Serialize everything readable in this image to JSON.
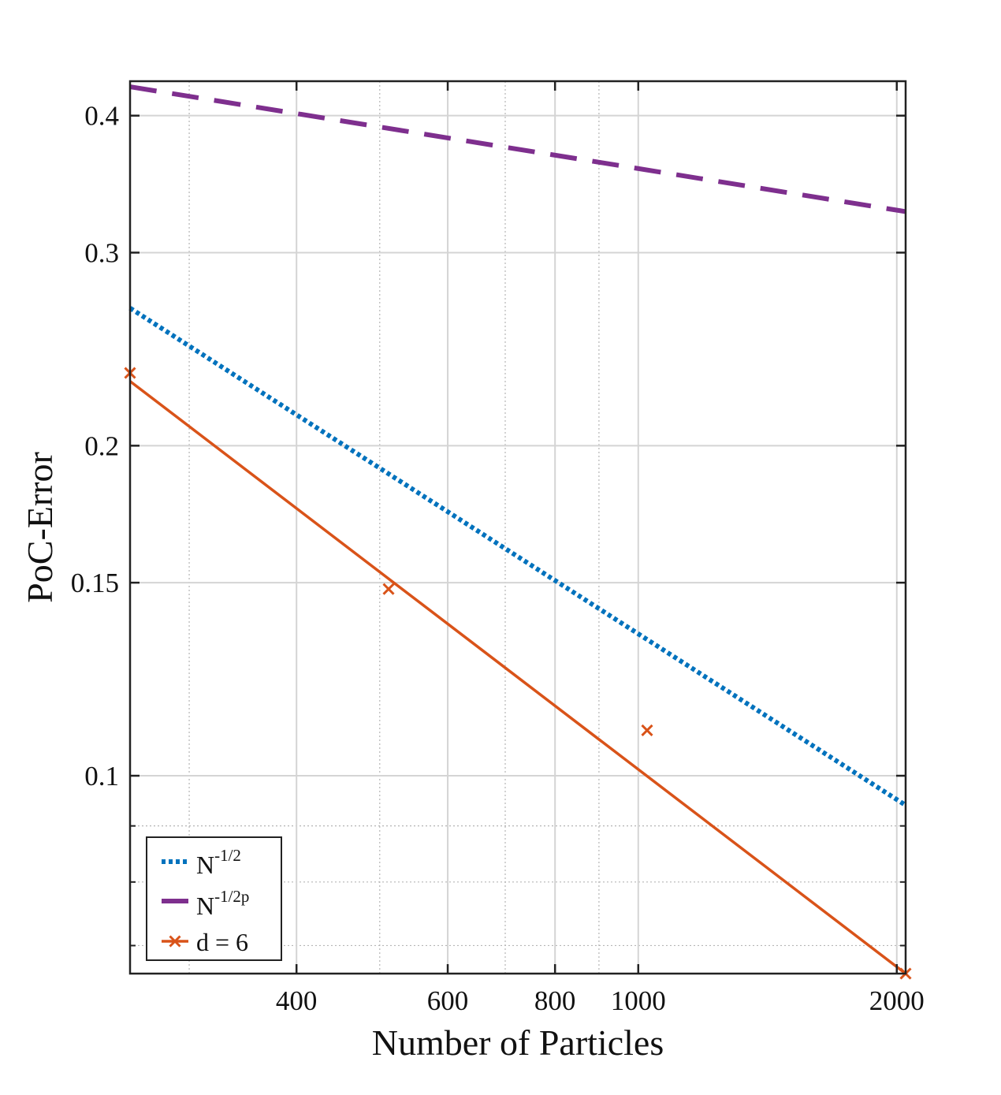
{
  "chart_data": {
    "type": "line",
    "title": "",
    "xlabel": "Number of Particles",
    "ylabel": "PoC-Error",
    "xscale": "log",
    "yscale": "log",
    "xlim": [
      256,
      2048
    ],
    "ylim": [
      0.066,
      0.43
    ],
    "grid": true,
    "legend_position": "bottom-left",
    "x_ticks": [
      {
        "value": 400,
        "label": "400"
      },
      {
        "value": 600,
        "label": "600"
      },
      {
        "value": 800,
        "label": "800"
      },
      {
        "value": 1000,
        "label": "1000"
      },
      {
        "value": 2000,
        "label": "2000"
      }
    ],
    "y_ticks": [
      {
        "value": 0.1,
        "label": "0.1"
      },
      {
        "value": 0.15,
        "label": "0.15"
      },
      {
        "value": 0.2,
        "label": "0.2"
      },
      {
        "value": 0.3,
        "label": "0.3"
      },
      {
        "value": 0.4,
        "label": "0.4"
      }
    ],
    "series": [
      {
        "name": "N^-1/2",
        "legend_base": "N",
        "legend_sup": "-1/2",
        "color": "#0072BD",
        "style": "dotted",
        "x": [
          256,
          2048
        ],
        "y": [
          0.267,
          0.094
        ]
      },
      {
        "name": "N^-1/2p",
        "legend_base": "N",
        "legend_sup": "-1/2p",
        "color": "#7E2F8E",
        "style": "dashed",
        "x": [
          256,
          2048
        ],
        "y": [
          0.425,
          0.327
        ]
      },
      {
        "name": "d = 6",
        "legend_base": "d = 6",
        "legend_sup": "",
        "color": "#D95319",
        "style": "solid",
        "marker": "x",
        "x": [
          256,
          2048
        ],
        "y": [
          0.229,
          0.066
        ],
        "points": {
          "x": [
            256,
            512,
            1024,
            2048
          ],
          "y": [
            0.233,
            0.148,
            0.11,
            0.066
          ]
        }
      }
    ]
  }
}
